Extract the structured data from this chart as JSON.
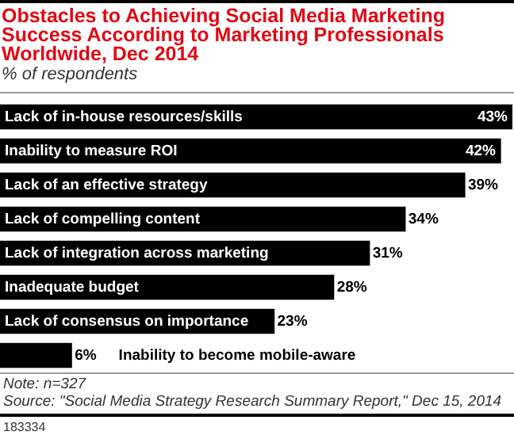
{
  "chart_data": {
    "type": "bar",
    "orientation": "horizontal",
    "title": "Obstacles to Achieving Social Media Marketing Success According to Marketing Professionals Worldwide, Dec 2014",
    "subtitle": "% of respondents",
    "categories": [
      "Lack of in-house resources/skills",
      "Inability to measure ROI",
      "Lack of an effective strategy",
      "Lack of compelling content",
      "Lack of integration across marketing",
      "Inadequate budget",
      "Lack of consensus on importance",
      "Inability to become mobile-aware"
    ],
    "values": [
      43,
      42,
      39,
      34,
      31,
      28,
      23,
      6
    ],
    "value_labels": [
      "43%",
      "42%",
      "39%",
      "34%",
      "31%",
      "28%",
      "23%",
      "6%"
    ],
    "color": "#000000",
    "annotations": [
      "Note: n=327",
      "Source: \"Social Media Strategy Research Summary Report,\" Dec 15, 2014",
      "183334"
    ]
  }
}
